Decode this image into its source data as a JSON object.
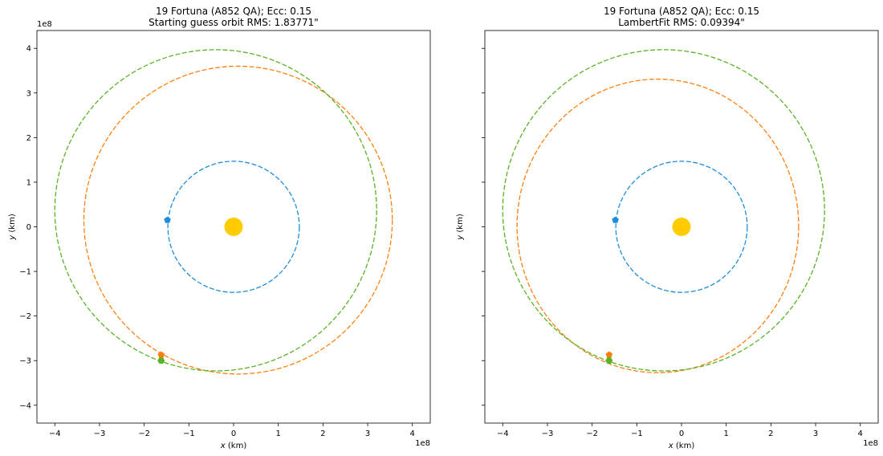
{
  "chart_data": [
    {
      "type": "scatter",
      "title_line1": "19 Fortuna (A852 QA); Ecc: 0.15",
      "title_line2": "Starting guess orbit RMS: 1.83771\"",
      "xlabel": "x (km)",
      "ylabel": "y (km)",
      "xlim": [
        -4.4,
        4.4
      ],
      "ylim": [
        -4.4,
        4.4
      ],
      "ticks": [
        -4,
        -3,
        -2,
        -1,
        0,
        1,
        2,
        3,
        4
      ],
      "tick_labels": [
        "−4",
        "−3",
        "−2",
        "−1",
        "0",
        "1",
        "2",
        "3",
        "4"
      ],
      "offset_text": "1e8",
      "sun": {
        "x": 0.0,
        "y": 0.0,
        "color": "#FFCC00"
      },
      "orbits": [
        {
          "color": "#1f8ed8",
          "cx": 0.0,
          "cy": 0.0,
          "rx": 1.47,
          "ry": 1.47,
          "marker": {
            "x": -1.48,
            "y": 0.15,
            "shape": "pentagon"
          }
        },
        {
          "color": "#ff7f0e",
          "cx": 0.1,
          "cy": 0.15,
          "rx": 3.45,
          "ry": 3.45,
          "marker": {
            "x": -1.62,
            "y": -2.87,
            "shape": "pentagon"
          }
        },
        {
          "color": "#5ab325",
          "cx": -0.4,
          "cy": 0.37,
          "rx": 3.6,
          "ry": 3.6,
          "marker": {
            "x": -1.62,
            "y": -3.0,
            "shape": "hexagon"
          }
        }
      ]
    },
    {
      "type": "scatter",
      "title_line1": "19 Fortuna (A852 QA); Ecc: 0.15",
      "title_line2": "LambertFit RMS: 0.09394\"",
      "xlabel": "x (km)",
      "ylabel": "y (km)",
      "xlim": [
        -4.4,
        4.4
      ],
      "ylim": [
        -4.4,
        4.4
      ],
      "ticks": [
        -4,
        -3,
        -2,
        -1,
        0,
        1,
        2,
        3,
        4
      ],
      "tick_labels": [
        "−4",
        "−3",
        "−2",
        "−1",
        "0",
        "1",
        "2",
        "3",
        "4"
      ],
      "show_y_tick_labels": false,
      "offset_text": "1e8",
      "sun": {
        "x": 0.0,
        "y": 0.0,
        "color": "#FFCC00"
      },
      "orbits": [
        {
          "color": "#1f8ed8",
          "cx": 0.0,
          "cy": 0.0,
          "rx": 1.47,
          "ry": 1.47,
          "marker": {
            "x": -1.48,
            "y": 0.15,
            "shape": "pentagon"
          }
        },
        {
          "color": "#ff7f0e",
          "cx": -0.53,
          "cy": 0.02,
          "rx": 3.15,
          "ry": 3.29,
          "marker": {
            "x": -1.62,
            "y": -2.87,
            "shape": "pentagon"
          }
        },
        {
          "color": "#5ab325",
          "cx": -0.4,
          "cy": 0.37,
          "rx": 3.6,
          "ry": 3.6,
          "marker": {
            "x": -1.62,
            "y": -3.0,
            "shape": "hexagon"
          }
        }
      ]
    }
  ]
}
